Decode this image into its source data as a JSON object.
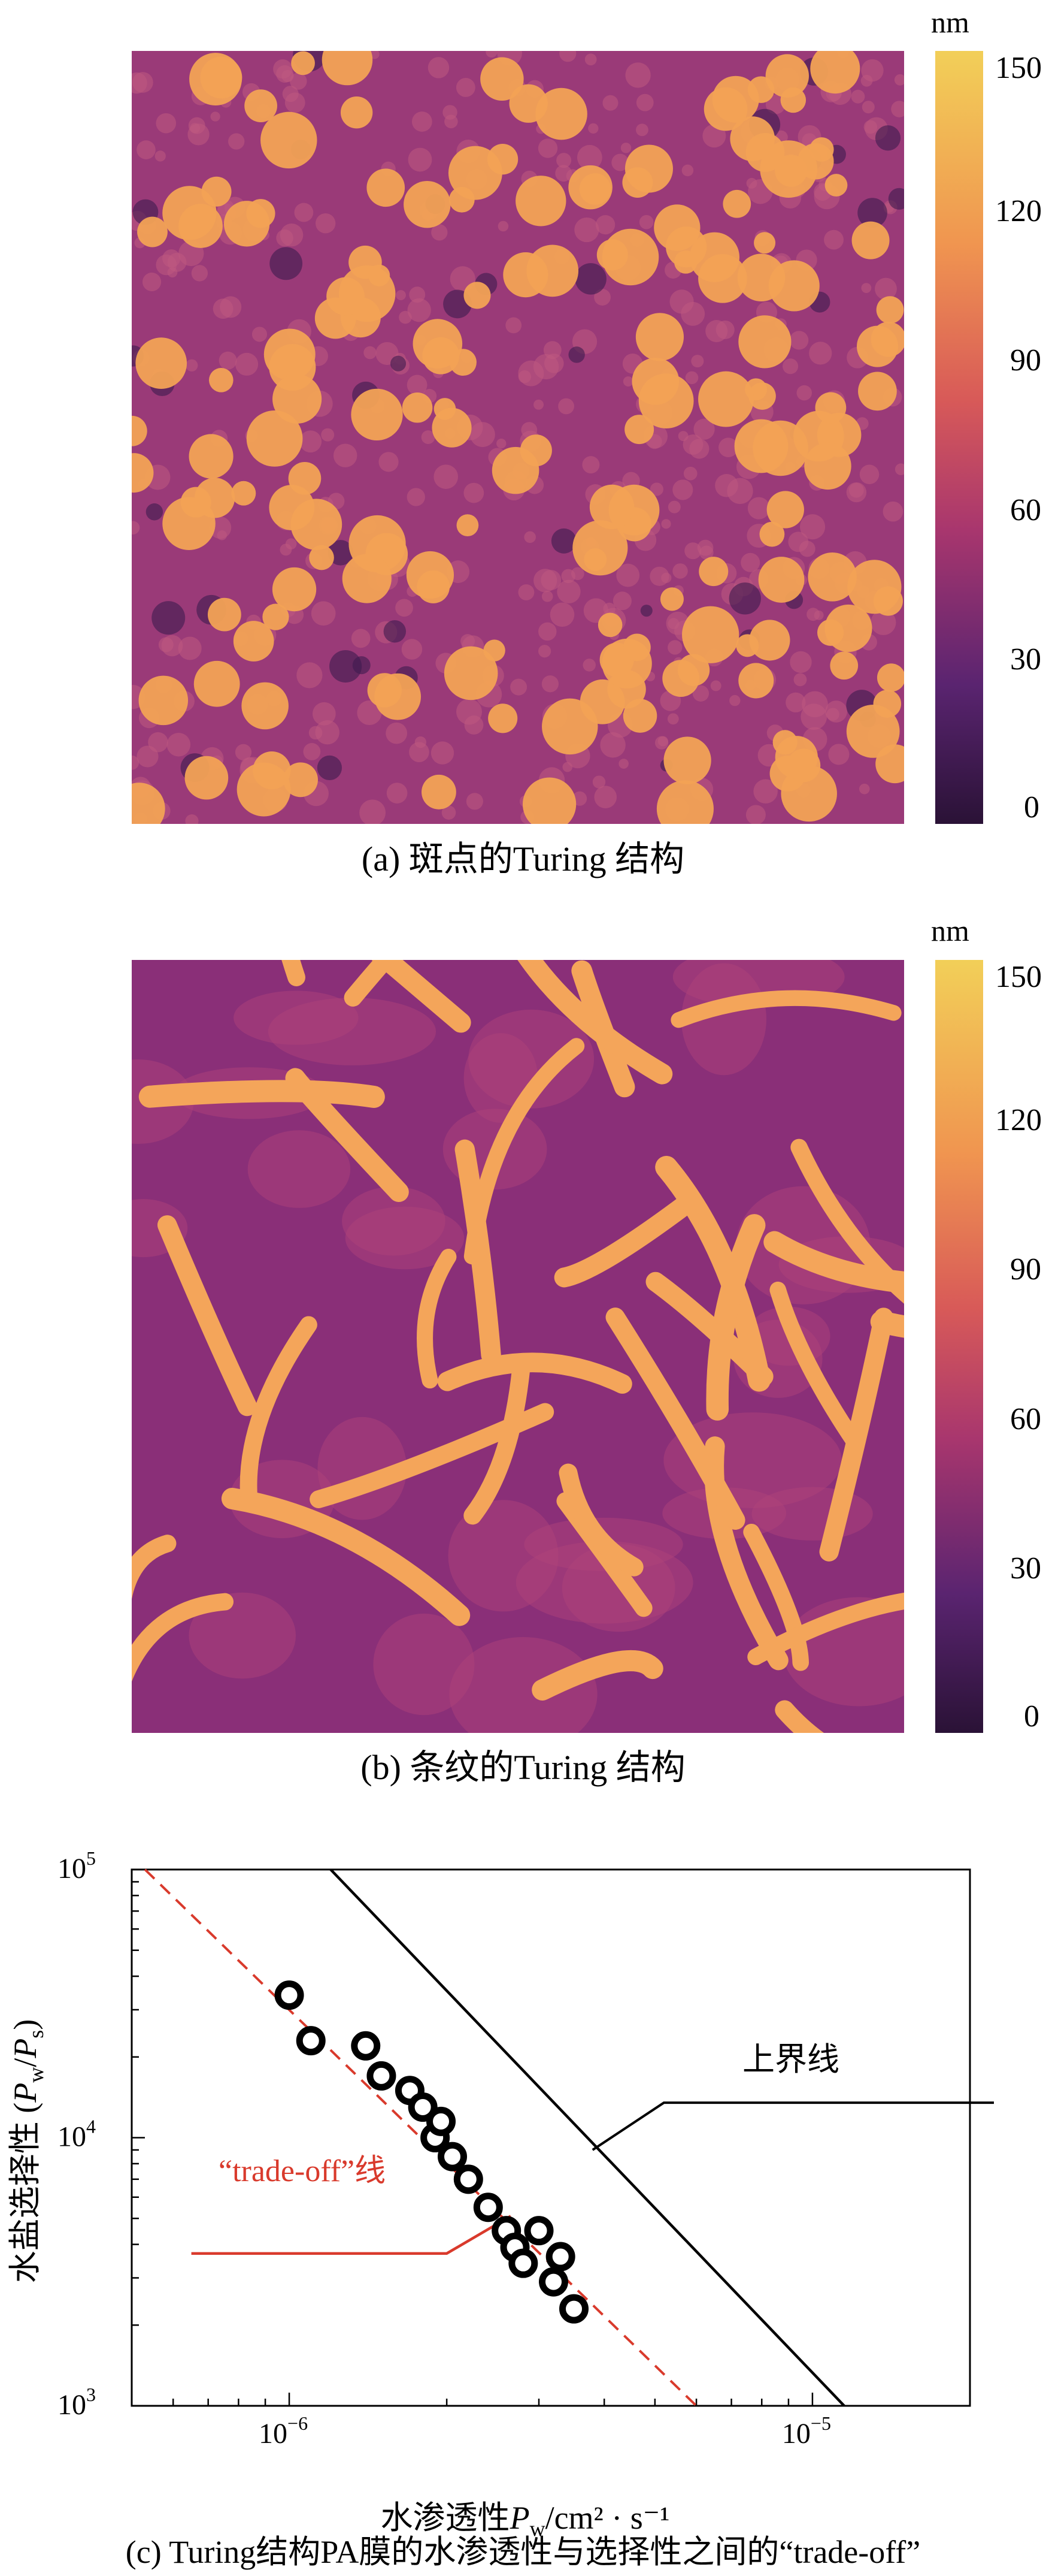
{
  "panel_a": {
    "caption": "(a) 斑点的Turing 结构",
    "colorbar": {
      "unit": "nm",
      "ticks": [
        "150",
        "120",
        "90",
        "60",
        "30",
        "0"
      ],
      "range": [
        0,
        150
      ],
      "colors": [
        "#2a1236",
        "#5a2470",
        "#a8366e",
        "#d85a58",
        "#f09550",
        "#f2cf58"
      ]
    },
    "background_color": "#9a3a78",
    "spot_color": "#f2a255"
  },
  "panel_b": {
    "caption": "(b) 条纹的Turing 结构",
    "colorbar": {
      "unit": "nm",
      "ticks": [
        "150",
        "120",
        "90",
        "60",
        "30",
        "0"
      ],
      "range": [
        0,
        150
      ]
    },
    "background_color": "#8a2f78",
    "stripe_color": "#f4a55a"
  },
  "panel_c": {
    "caption": "(c)  Turing结构PA膜的水渗透性与选择性之间的“trade-off”",
    "chart_data": {
      "type": "scatter",
      "xlabel_main": "水渗透性",
      "xlabel_sym": "P",
      "xlabel_sub": "w",
      "xlabel_unit": "/cm² · s⁻¹",
      "ylabel_main": "水盐选择性 (",
      "ylabel_sym1": "P",
      "ylabel_sub1": "w",
      "ylabel_sep": "/",
      "ylabel_sym2": "P",
      "ylabel_sub2": "s",
      "ylabel_close": ")",
      "x_scale": "log",
      "y_scale": "log",
      "xlim": [
        5e-07,
        2e-05
      ],
      "ylim": [
        1000,
        100000
      ],
      "x_ticks": [
        {
          "base": "10",
          "exp": "−6",
          "value": 1e-06
        },
        {
          "base": "10",
          "exp": "−5",
          "value": 1e-05
        }
      ],
      "y_ticks": [
        {
          "base": "10",
          "exp": "5",
          "value": 100000
        },
        {
          "base": "10",
          "exp": "4",
          "value": 10000
        },
        {
          "base": "10",
          "exp": "3",
          "value": 1000
        }
      ],
      "series": [
        {
          "kind": "points",
          "color": "#000000",
          "x": [
            1e-06,
            1.1e-06,
            1.4e-06,
            1.5e-06,
            1.7e-06,
            1.8e-06,
            1.9e-06,
            1.95e-06,
            2.05e-06,
            2.2e-06,
            2.4e-06,
            2.6e-06,
            2.7e-06,
            2.8e-06,
            3e-06,
            3.2e-06,
            3.3e-06,
            3.5e-06
          ],
          "y": [
            34000,
            23000,
            22000,
            17000,
            15000,
            13000,
            10000,
            11500,
            8500,
            7000,
            5500,
            4500,
            3900,
            3400,
            4500,
            2900,
            3600,
            2300
          ]
        },
        {
          "kind": "dashed-line",
          "label": "“trade-off”线",
          "color": "#d93a2c",
          "x": [
            5.3e-07,
            6e-06
          ],
          "y": [
            100000,
            1000
          ]
        },
        {
          "kind": "solid-line",
          "label": "上界线",
          "color": "#000000",
          "x": [
            1.2e-06,
            1.15e-05
          ],
          "y": [
            100000,
            1000
          ]
        }
      ],
      "annotations": [
        {
          "text": "上界线",
          "color": "#000000"
        },
        {
          "text": "“trade-off”线",
          "color": "#d93a2c"
        }
      ],
      "grid": false
    }
  }
}
